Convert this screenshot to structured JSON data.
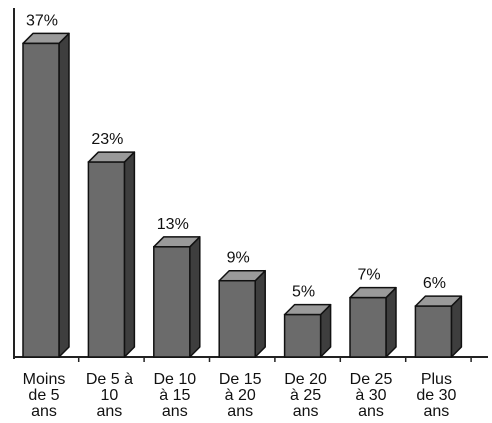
{
  "chart_data": {
    "type": "bar",
    "style": "3d",
    "title": "",
    "xlabel": "",
    "ylabel": "",
    "ylim": [
      0,
      40
    ],
    "grid": false,
    "categories": [
      [
        "Moins",
        "de 5",
        "ans"
      ],
      [
        "De 5 à",
        "10",
        "ans"
      ],
      [
        "De 10",
        "à 15",
        "ans"
      ],
      [
        "De 15",
        "à 20",
        "ans"
      ],
      [
        "De 20",
        "à 25",
        "ans"
      ],
      [
        "De 25",
        "à 30",
        "ans"
      ],
      [
        "Plus",
        "de 30",
        "ans"
      ]
    ],
    "values": [
      37,
      23,
      13,
      9,
      5,
      7,
      6
    ],
    "data_labels": [
      "37%",
      "23%",
      "13%",
      "9%",
      "5%",
      "7%",
      "6%"
    ],
    "colors": {
      "bar_front": "#6b6b6b",
      "bar_side": "#3e3e3e",
      "bar_top": "#9a9a9a",
      "axis": "#222222"
    }
  }
}
